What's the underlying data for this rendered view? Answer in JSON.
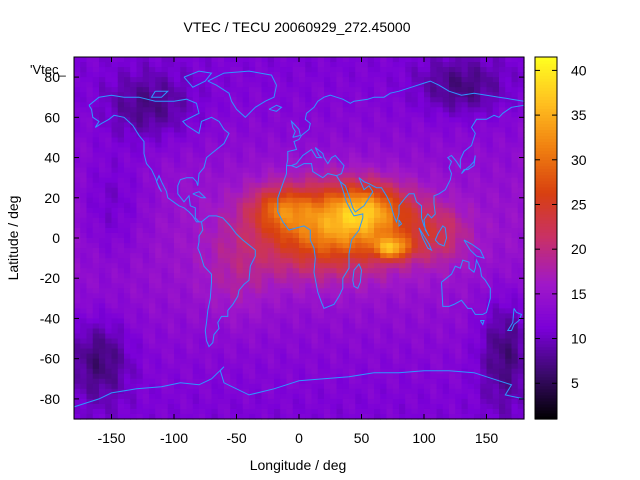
{
  "chart_data": {
    "type": "heatmap",
    "title": "VTEC / TECU 20060929_272.45000",
    "xlabel": "Longitude / deg",
    "ylabel": "Latitude / deg",
    "key_label": "'Vtec_",
    "xlim": [
      -180,
      180
    ],
    "ylim": [
      -90,
      90
    ],
    "xticks": [
      -150,
      -100,
      -50,
      0,
      50,
      100,
      150
    ],
    "yticks": [
      -80,
      -60,
      -40,
      -20,
      0,
      20,
      40,
      60,
      80
    ],
    "colorbar": {
      "range": [
        1,
        41.5
      ],
      "ticks": [
        5,
        10,
        15,
        20,
        25,
        30,
        35,
        40
      ],
      "palette": [
        "#000000",
        "#3a0a6a",
        "#7a00d8",
        "#a018c8",
        "#c83068",
        "#d84010",
        "#f08010",
        "#ffc020",
        "#ffff20"
      ]
    },
    "grid": false,
    "coastline_color": "#2d98ff",
    "cell_deg": [
      5,
      2.5
    ],
    "peaks": [
      {
        "lon": 75,
        "lat": -5,
        "vtec": 40
      },
      {
        "lon": 50,
        "lat": 14,
        "vtec": 33
      },
      {
        "lon": -10,
        "lat": 15,
        "vtec": 27
      },
      {
        "lon": 15,
        "lat": 0,
        "vtec": 24
      },
      {
        "lon": 100,
        "lat": 8,
        "vtec": 22
      },
      {
        "lon": 130,
        "lat": -12,
        "vtec": 18
      }
    ]
  }
}
